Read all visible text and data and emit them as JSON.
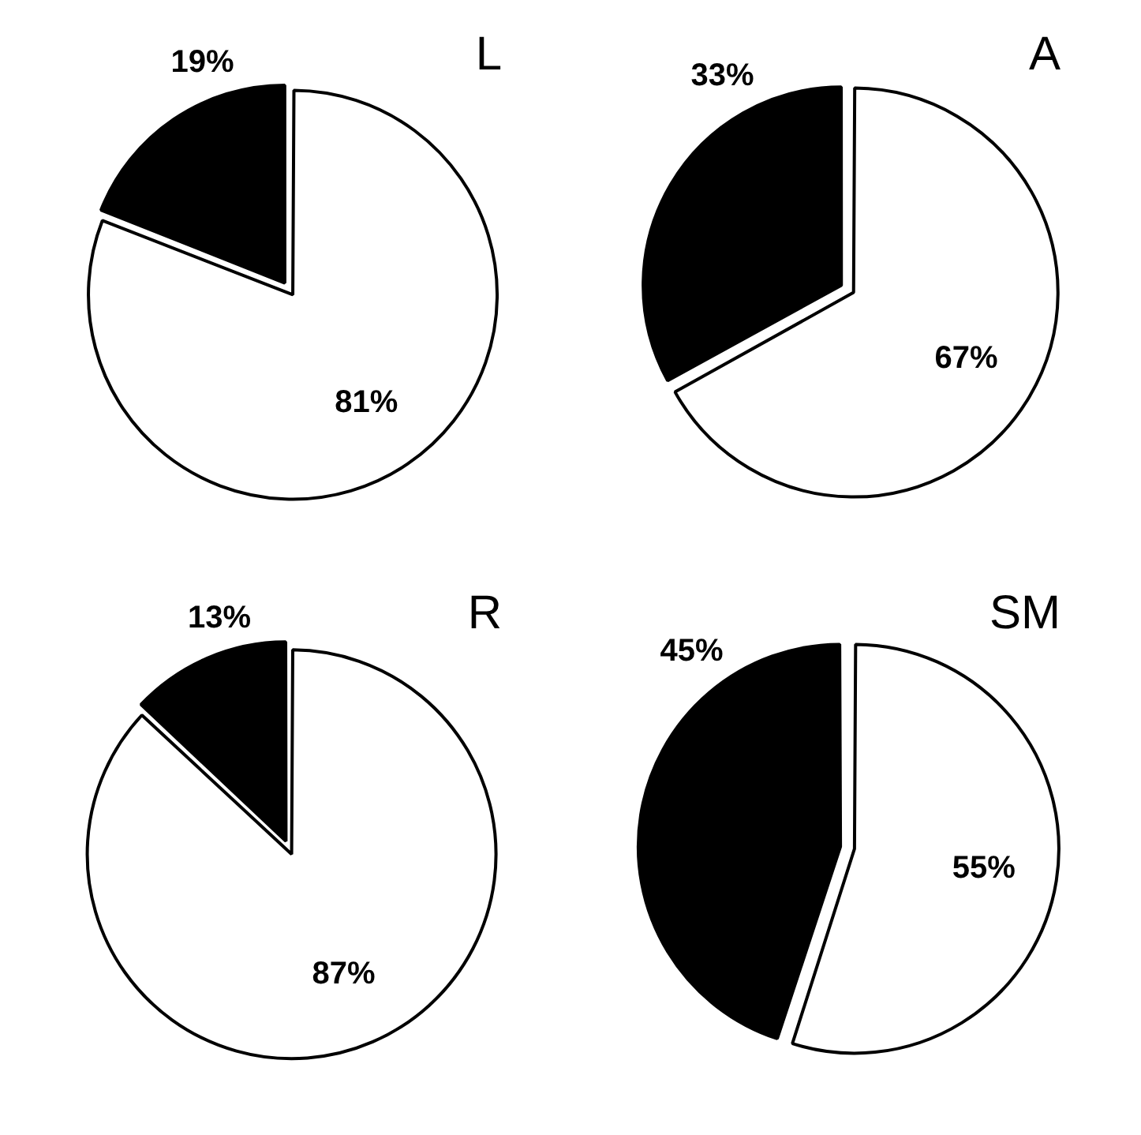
{
  "chart_data": [
    {
      "type": "pie",
      "title": "L",
      "categories": [
        null,
        null
      ],
      "values": [
        81,
        19
      ],
      "colors": [
        "#ffffff",
        "#000000"
      ],
      "value_labels": [
        "81%",
        "19%"
      ]
    },
    {
      "type": "pie",
      "title": "A",
      "categories": [
        null,
        null
      ],
      "values": [
        67,
        33
      ],
      "colors": [
        "#ffffff",
        "#000000"
      ],
      "value_labels": [
        "67%",
        "33%"
      ]
    },
    {
      "type": "pie",
      "title": "R",
      "categories": [
        null,
        null
      ],
      "values": [
        87,
        13
      ],
      "colors": [
        "#ffffff",
        "#000000"
      ],
      "value_labels": [
        "87%",
        "13%"
      ]
    },
    {
      "type": "pie",
      "title": "SM",
      "categories": [
        null,
        null
      ],
      "values": [
        55,
        45
      ],
      "colors": [
        "#ffffff",
        "#000000"
      ],
      "value_labels": [
        "55%",
        "45%"
      ]
    }
  ]
}
